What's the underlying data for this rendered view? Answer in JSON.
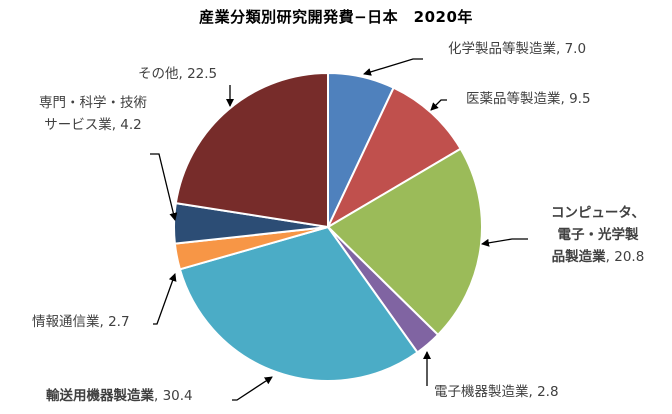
{
  "chart_data": {
    "type": "pie",
    "title": "産業分類別研究開発費−日本　2020年",
    "start_angle_deg": 0,
    "direction": "clockwise",
    "center": [
      328,
      227
    ],
    "radius": 154,
    "slices": [
      {
        "label": "化学製品等製造業",
        "value": 7.0,
        "color": "#4f81bd"
      },
      {
        "label": "医薬品等製造業",
        "value": 9.5,
        "color": "#c0504d"
      },
      {
        "label": "コンピュータ、電子・光学製品製造業",
        "value": 20.8,
        "color": "#9bbb59"
      },
      {
        "label": "電子機器製造業",
        "value": 2.8,
        "color": "#8064a2"
      },
      {
        "label": "輸送用機器製造業",
        "value": 30.4,
        "color": "#4bacc6"
      },
      {
        "label": "情報通信業",
        "value": 2.7,
        "color": "#f79646"
      },
      {
        "label": "専門・科学・技術サービス業",
        "value": 4.2,
        "color": "#2c4d75"
      },
      {
        "label": "その他",
        "value": 22.5,
        "color": "#772c2a"
      }
    ]
  },
  "labels": {
    "chemical": {
      "name": "化学製品等製造業",
      "value": ", 7.0"
    },
    "pharma": {
      "name": "医薬品等製造業",
      "value": ", 9.5"
    },
    "computer": {
      "line1": "コンピュータ、",
      "line2": "電子・光学製",
      "line3": "品製造業",
      "value": ", 20.8"
    },
    "electronic": {
      "name": "電子機器製造業",
      "value": ", 2.8"
    },
    "transport": {
      "name": "輸送用機器製造業",
      "value": ", 30.4"
    },
    "ict": {
      "name": "情報通信業",
      "value": ", 2.7"
    },
    "professional": {
      "line1": "専門・科学・技術",
      "line2": "サービス業",
      "value": ", 4.2"
    },
    "other": {
      "name": "その他",
      "value": ", 22.5"
    }
  }
}
